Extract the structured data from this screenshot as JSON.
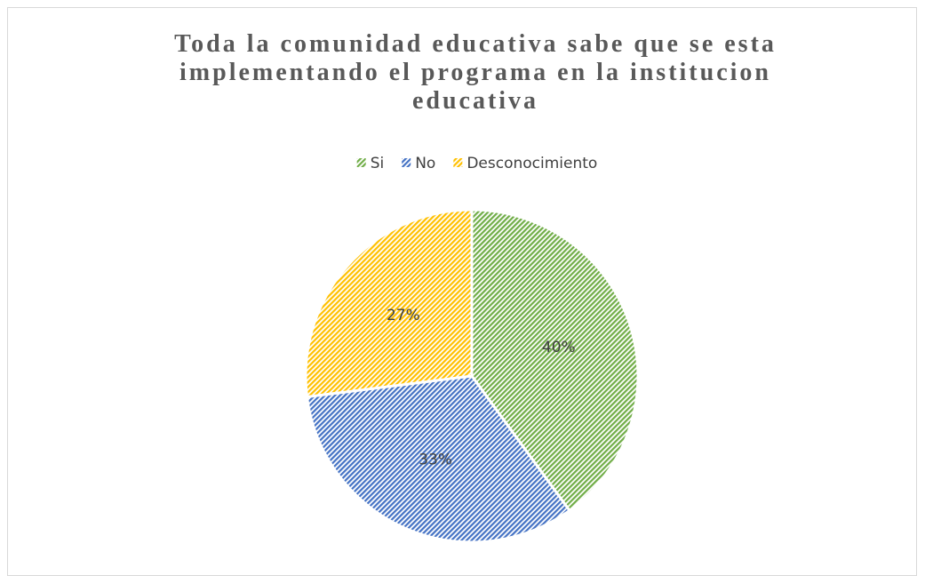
{
  "chart_data": {
    "type": "pie",
    "title": "Toda la comunidad educativa sabe que se esta implementando el programa en la institucion educativa",
    "categories": [
      "Si",
      "No",
      "Desconocimiento"
    ],
    "values": [
      40,
      33,
      27
    ],
    "value_labels": [
      "40%",
      "33%",
      "27%"
    ],
    "colors": [
      "#70ad47",
      "#4472c4",
      "#ffc000"
    ],
    "legend": "top"
  }
}
